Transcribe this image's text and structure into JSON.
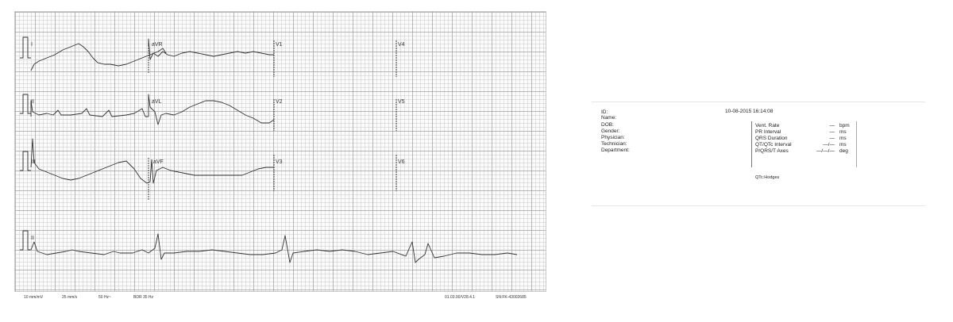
{
  "leads": {
    "row1": [
      "I",
      "aVR",
      "V1",
      "V4"
    ],
    "row2": [
      "II",
      "aVL",
      "V2",
      "V5"
    ],
    "row3": [
      "III",
      "aVF",
      "V3",
      "V6"
    ],
    "rhythm": "II"
  },
  "footer": {
    "gain": "10 mm/mV",
    "speed": "25 mm/s",
    "filter": "50 Hz~",
    "bdr": "BDR 35 Hz",
    "version": "01.03.00/V28.4.1",
    "serial": "SN:FK-43002685"
  },
  "patient": {
    "timestamp": "10-08-2015 16:14:08",
    "fields": [
      {
        "label": "ID:"
      },
      {
        "label": "Name:"
      },
      {
        "label": "DOB:"
      },
      {
        "label": "Gender:"
      },
      {
        "label": "Physician:"
      },
      {
        "label": "Technician:"
      },
      {
        "label": "Department:"
      }
    ]
  },
  "measurements": [
    {
      "label": "Vent. Rate",
      "value": "—",
      "unit": "bpm"
    },
    {
      "label": "PR Interval",
      "value": "—",
      "unit": "ms"
    },
    {
      "label": "QRS Duration",
      "value": "—",
      "unit": "ms"
    },
    {
      "label": "QT/QTc Interval",
      "value": "—/—",
      "unit": "ms"
    },
    {
      "label": "P/QRS/T Axes",
      "value": "—/—/—",
      "unit": "deg"
    }
  ],
  "qtc_formula": "QTc:Hodges",
  "colors": {
    "trace": "#333333",
    "grid": "#b0b0b0"
  }
}
